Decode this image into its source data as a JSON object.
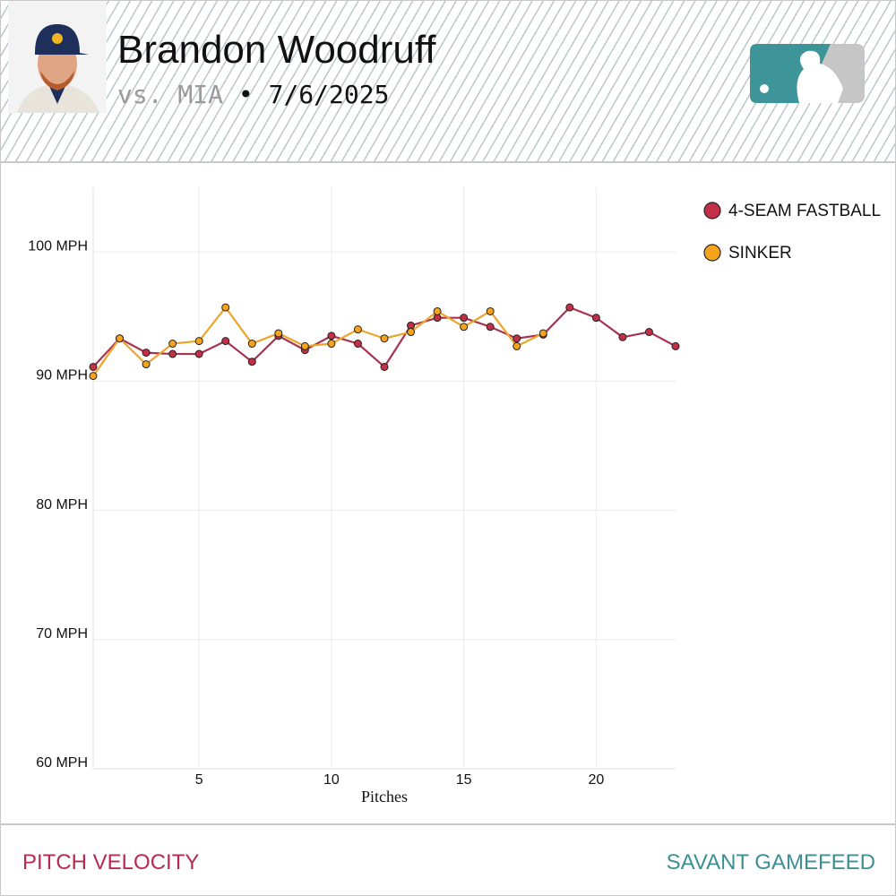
{
  "header": {
    "name": "Brandon Woodruff",
    "opponent": "vs. MIA",
    "separator": "•",
    "date": "7/6/2025"
  },
  "chart_data": {
    "type": "line",
    "x": [
      1,
      2,
      3,
      4,
      5,
      6,
      7,
      8,
      9,
      10,
      11,
      12,
      13,
      14,
      15,
      16,
      17,
      18,
      19,
      20,
      21,
      22,
      23
    ],
    "xlim": [
      1,
      23
    ],
    "xticks": [
      5,
      10,
      15,
      20
    ],
    "xlabel": "Pitches",
    "ylim": [
      60,
      105
    ],
    "yticks": [
      {
        "value": 60,
        "label": "60 MPH"
      },
      {
        "value": 70,
        "label": "70 MPH"
      },
      {
        "value": 80,
        "label": "80 MPH"
      },
      {
        "value": 90,
        "label": "90 MPH"
      },
      {
        "value": 100,
        "label": "100 MPH"
      }
    ],
    "grid": true,
    "legend": "right",
    "series": [
      {
        "name": "4-SEAM FASTBALL",
        "color": "#c22f47",
        "line_color": "#a83350",
        "values": [
          91.1,
          93.3,
          92.2,
          92.1,
          92.1,
          93.1,
          91.5,
          93.5,
          92.4,
          93.5,
          92.9,
          91.1,
          94.3,
          94.9,
          94.9,
          94.2,
          93.3,
          93.6,
          95.7,
          94.9,
          93.4,
          93.8,
          92.7
        ]
      },
      {
        "name": "SINKER",
        "color": "#f5a31c",
        "line_color": "#eba52a",
        "values": [
          90.4,
          93.3,
          91.3,
          92.9,
          93.1,
          95.7,
          92.9,
          93.7,
          92.7,
          92.9,
          94.0,
          93.3,
          93.8,
          95.4,
          94.2,
          95.4,
          92.7,
          93.7,
          null,
          null,
          null,
          null,
          null
        ]
      }
    ]
  },
  "footer": {
    "left": "PITCH VELOCITY",
    "right": "SAVANT GAMEFEED"
  }
}
